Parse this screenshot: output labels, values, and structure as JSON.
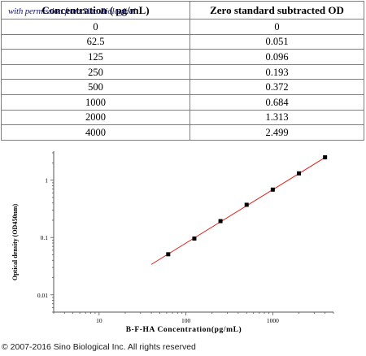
{
  "table": {
    "headers": [
      "Concentration ( pg/mL)",
      "Zero standard subtracted OD"
    ],
    "rows": [
      [
        "0",
        "0"
      ],
      [
        "62.5",
        "0.051"
      ],
      [
        "125",
        "0.096"
      ],
      [
        "250",
        "0.193"
      ],
      [
        "500",
        "0.372"
      ],
      [
        "1000",
        "0.684"
      ],
      [
        "2000",
        "1.313"
      ],
      [
        "4000",
        "2.499"
      ]
    ]
  },
  "watermark": "with permission from Sino Biological",
  "copyright": "© 2007-2016 Sino Biological Inc. All rights reserved",
  "chart_data": {
    "type": "scatter",
    "xlabel": "B-F-HA Concentration(pg/mL)",
    "ylabel": "Optical density (OD450nm)",
    "x_scale": "log",
    "y_scale": "log",
    "xlim": [
      3,
      5000
    ],
    "ylim": [
      0.005,
      3.2
    ],
    "x_ticks": [
      10,
      100,
      1000
    ],
    "x_tick_labels": [
      "10",
      "100",
      "1000"
    ],
    "y_ticks": [
      0.01,
      0.1,
      1
    ],
    "y_tick_labels": [
      "0.01",
      "0.1",
      "1"
    ],
    "grid": false,
    "series": [
      {
        "points": [
          [
            62.5,
            0.051
          ],
          [
            125,
            0.096
          ],
          [
            250,
            0.193
          ],
          [
            500,
            0.372
          ],
          [
            1000,
            0.684
          ],
          [
            2000,
            1.313
          ],
          [
            4000,
            2.499
          ]
        ],
        "marker_color": "#000000"
      }
    ],
    "fit_line": {
      "x": [
        40,
        4200
      ],
      "y": [
        0.034,
        2.6
      ],
      "color": "#e0201a"
    }
  }
}
